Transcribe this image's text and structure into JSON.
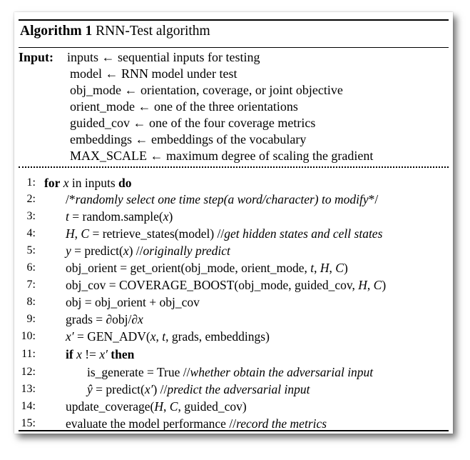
{
  "algorithm": {
    "label": "Algorithm 1",
    "name": "RNN-Test algorithm"
  },
  "inputs": {
    "label": "Input:",
    "lines": [
      "inputs ← sequential inputs for testing",
      "model ← RNN model under test",
      "obj_mode ← orientation, coverage, or joint objective",
      "orient_mode ← one of the three orientations",
      "guided_cov ← one of the four coverage metrics",
      "embeddings ← embeddings of the vocabulary",
      "MAX_SCALE ← maximum degree of scaling the gradient"
    ]
  },
  "steps": [
    {
      "n": "1:",
      "parts": [
        {
          "t": "kw",
          "v": "for"
        },
        {
          "t": "n",
          "v": " "
        },
        {
          "t": "mi",
          "v": "x"
        },
        {
          "t": "n",
          "v": " in inputs "
        },
        {
          "t": "kw",
          "v": "do"
        }
      ]
    },
    {
      "n": "2:",
      "parts": [
        {
          "t": "n",
          "v": "/*"
        },
        {
          "t": "cm",
          "v": "randomly select one time step(a word/character) to modify"
        },
        {
          "t": "n",
          "v": "*/"
        }
      ]
    },
    {
      "n": "3:",
      "parts": [
        {
          "t": "mi",
          "v": "t"
        },
        {
          "t": "n",
          "v": " = random.sample("
        },
        {
          "t": "mi",
          "v": "x"
        },
        {
          "t": "n",
          "v": ")"
        }
      ]
    },
    {
      "n": "4:",
      "parts": [
        {
          "t": "mi",
          "v": "H"
        },
        {
          "t": "n",
          "v": ", "
        },
        {
          "t": "mi",
          "v": "C"
        },
        {
          "t": "n",
          "v": " = retrieve_states(model)  //"
        },
        {
          "t": "cm",
          "v": "get hidden states and cell states"
        }
      ]
    },
    {
      "n": "5:",
      "parts": [
        {
          "t": "mi",
          "v": "y"
        },
        {
          "t": "n",
          "v": " = predict("
        },
        {
          "t": "mi",
          "v": "x"
        },
        {
          "t": "n",
          "v": ")  //"
        },
        {
          "t": "cm",
          "v": "originally predict"
        }
      ]
    },
    {
      "n": "6:",
      "parts": [
        {
          "t": "n",
          "v": "obj_orient = get_orient(obj_mode, orient_mode, "
        },
        {
          "t": "mi",
          "v": "t"
        },
        {
          "t": "n",
          "v": ", "
        },
        {
          "t": "mi",
          "v": "H"
        },
        {
          "t": "n",
          "v": ", "
        },
        {
          "t": "mi",
          "v": "C"
        },
        {
          "t": "n",
          "v": ")"
        }
      ]
    },
    {
      "n": "7:",
      "parts": [
        {
          "t": "n",
          "v": "obj_cov = COVERAGE_BOOST(obj_mode, guided_cov, "
        },
        {
          "t": "mi",
          "v": "H"
        },
        {
          "t": "n",
          "v": ", "
        },
        {
          "t": "mi",
          "v": "C"
        },
        {
          "t": "n",
          "v": ")"
        }
      ]
    },
    {
      "n": "8:",
      "parts": [
        {
          "t": "n",
          "v": "obj = obj_orient + obj_cov"
        }
      ]
    },
    {
      "n": "9:",
      "parts": [
        {
          "t": "n",
          "v": "grads = ∂obj/∂"
        },
        {
          "t": "mi",
          "v": "x"
        }
      ]
    },
    {
      "n": "10:",
      "parts": [
        {
          "t": "mi",
          "v": "x′"
        },
        {
          "t": "n",
          "v": " = GEN_ADV("
        },
        {
          "t": "mi",
          "v": "x"
        },
        {
          "t": "n",
          "v": ", "
        },
        {
          "t": "mi",
          "v": "t"
        },
        {
          "t": "n",
          "v": ", grads, embeddings)"
        }
      ]
    },
    {
      "n": "11:",
      "parts": [
        {
          "t": "kw",
          "v": "if"
        },
        {
          "t": "n",
          "v": " "
        },
        {
          "t": "mi",
          "v": "x"
        },
        {
          "t": "n",
          "v": " != "
        },
        {
          "t": "mi",
          "v": "x′"
        },
        {
          "t": "n",
          "v": " "
        },
        {
          "t": "kw",
          "v": "then"
        }
      ]
    },
    {
      "n": "12:",
      "parts": [
        {
          "t": "n",
          "v": "is_generate = True  //"
        },
        {
          "t": "cm",
          "v": "whether obtain the adversarial input"
        }
      ]
    },
    {
      "n": "13:",
      "parts": [
        {
          "t": "mi",
          "v": "ŷ"
        },
        {
          "t": "n",
          "v": " = predict("
        },
        {
          "t": "mi",
          "v": "x′"
        },
        {
          "t": "n",
          "v": ")  //"
        },
        {
          "t": "cm",
          "v": "predict the adversarial input"
        }
      ]
    },
    {
      "n": "14:",
      "parts": [
        {
          "t": "n",
          "v": "update_coverage("
        },
        {
          "t": "mi",
          "v": "H"
        },
        {
          "t": "n",
          "v": ", "
        },
        {
          "t": "mi",
          "v": "C"
        },
        {
          "t": "n",
          "v": ", guided_cov)"
        }
      ]
    },
    {
      "n": "15:",
      "parts": [
        {
          "t": "n",
          "v": "evaluate the model performance  //"
        },
        {
          "t": "cm",
          "v": "record the metrics"
        }
      ]
    }
  ]
}
